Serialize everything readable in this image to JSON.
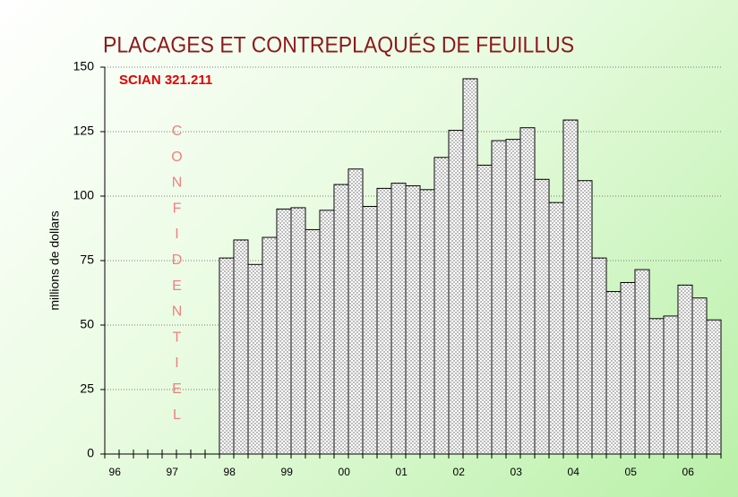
{
  "chart_data": {
    "type": "bar",
    "title": "PLACAGES ET CONTREPLAQUÉS DE FEUILLUS",
    "subtitle": "SCIAN 321.211",
    "annotation": "CONFIDENTIEL",
    "y_label": "millions de dollars",
    "categories": [
      "96",
      null,
      null,
      null,
      "97",
      null,
      null,
      null,
      "98",
      null,
      null,
      null,
      "99",
      null,
      null,
      null,
      "00",
      null,
      null,
      null,
      "01",
      null,
      null,
      null,
      "02",
      null,
      null,
      null,
      "03",
      null,
      null,
      null,
      "04",
      null,
      null,
      null,
      "05",
      null,
      null,
      null,
      "06",
      null,
      null
    ],
    "values": [
      null,
      null,
      null,
      null,
      null,
      null,
      null,
      null,
      76,
      83,
      73.5,
      84,
      95,
      95.5,
      87,
      94.5,
      104.5,
      110.5,
      96,
      103,
      105,
      104,
      102.5,
      115,
      125.5,
      145.5,
      112,
      121.5,
      122,
      126.5,
      106.5,
      97.5,
      129.5,
      106,
      76,
      63,
      66.5,
      71.5,
      52.5,
      53.5,
      65.5,
      60.5,
      52
    ],
    "ylim": [
      0,
      150
    ],
    "yticks": [
      0,
      25,
      50,
      75,
      100,
      125,
      150
    ],
    "grid": true,
    "color": "#000000"
  }
}
